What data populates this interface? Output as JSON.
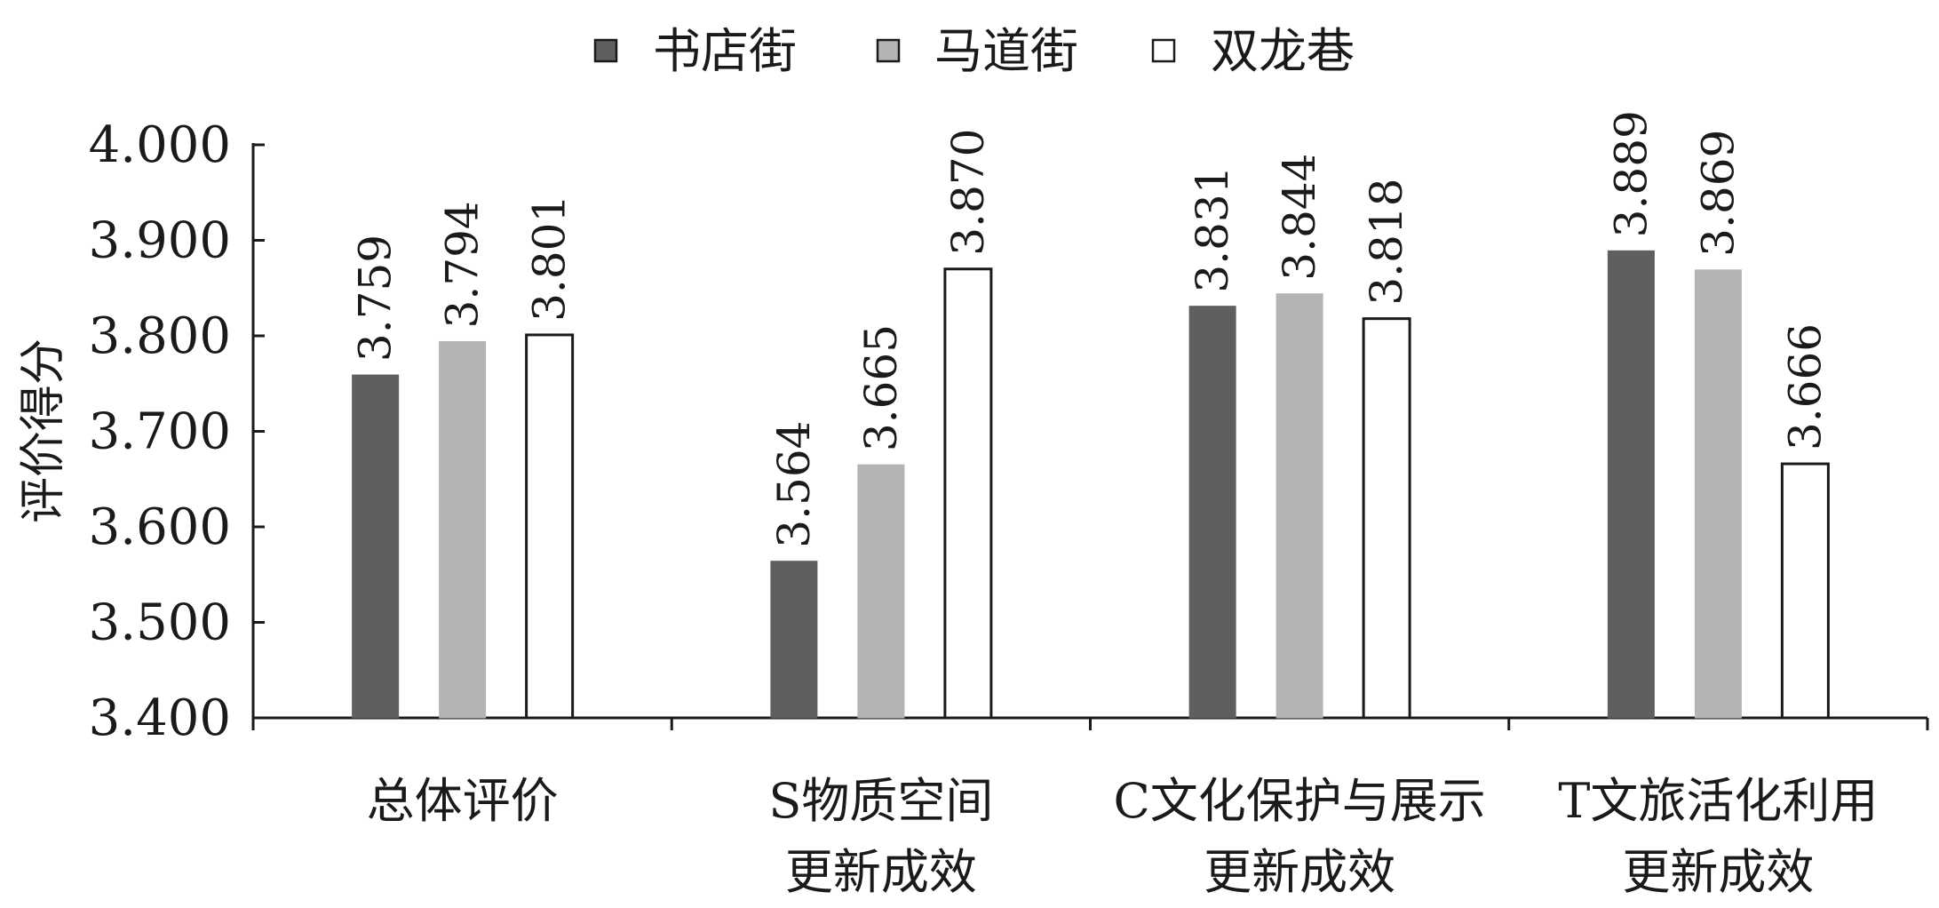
{
  "chart_data": {
    "type": "bar",
    "title": "",
    "xlabel": "",
    "ylabel": "评价得分",
    "ylim": [
      3.4,
      4.0
    ],
    "yticks": [
      "3.400",
      "3.500",
      "3.600",
      "3.700",
      "3.800",
      "3.900",
      "4.000"
    ],
    "grid": false,
    "legend_position": "top-center",
    "categories": [
      [
        "总体评价"
      ],
      [
        "S物质空间",
        "更新成效"
      ],
      [
        "C文化保护与展示",
        "更新成效"
      ],
      [
        "T文旅活化利用",
        "更新成效"
      ]
    ],
    "series": [
      {
        "name": "书店街",
        "color": "#5f5f5f",
        "values": [
          3.759,
          3.564,
          3.831,
          3.889
        ],
        "labels": [
          "3.759",
          "3.564",
          "3.831",
          "3.889"
        ]
      },
      {
        "name": "马道街",
        "color": "#b4b4b4",
        "values": [
          3.794,
          3.665,
          3.844,
          3.869
        ],
        "labels": [
          "3.794",
          "3.665",
          "3.844",
          "3.869"
        ]
      },
      {
        "name": "双龙巷",
        "color": "#ffffff",
        "values": [
          3.801,
          3.87,
          3.818,
          3.666
        ],
        "labels": [
          "3.801",
          "3.870",
          "3.818",
          "3.666"
        ]
      }
    ]
  }
}
